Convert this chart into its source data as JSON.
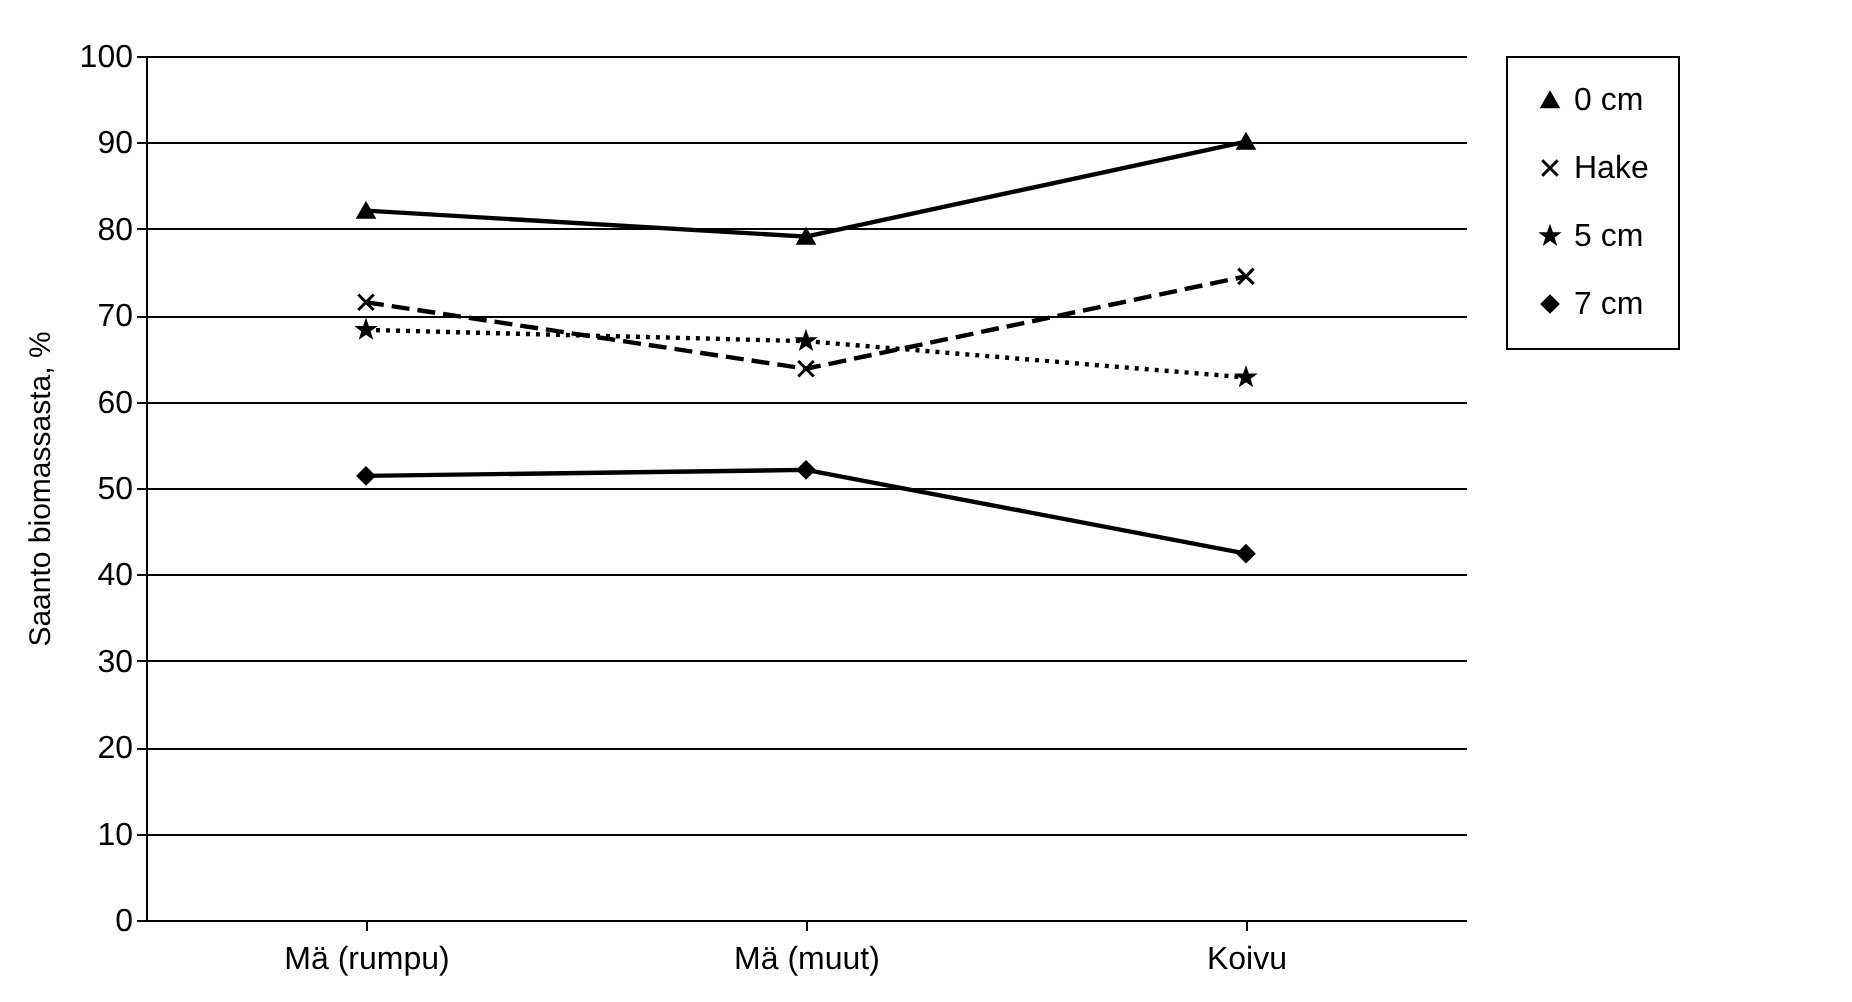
{
  "chart_data": {
    "type": "line",
    "ylabel": "Saanto biomassasta, %",
    "categories": [
      "Mä (rumpu)",
      "Mä (muut)",
      "Koivu"
    ],
    "ylim": [
      0,
      100
    ],
    "yticks": [
      0,
      10,
      20,
      30,
      40,
      50,
      60,
      70,
      80,
      90,
      100
    ],
    "grid": "y",
    "legend": "right",
    "series": [
      {
        "name": "0 cm",
        "color": "#000000",
        "marker": "triangle",
        "line_style": "solid",
        "values": [
          82.1,
          79.1,
          90.1
        ]
      },
      {
        "name": "Hake",
        "color": "#000000",
        "marker": "cross",
        "line_style": "dashed",
        "values": [
          71.5,
          63.8,
          74.5
        ]
      },
      {
        "name": "5 cm",
        "color": "#000000",
        "marker": "star",
        "line_style": "dotted",
        "values": [
          68.3,
          67.0,
          62.8
        ]
      },
      {
        "name": "7 cm",
        "color": "#000000",
        "marker": "diamond",
        "line_style": "solid",
        "values": [
          51.4,
          52.1,
          42.4
        ]
      }
    ]
  }
}
